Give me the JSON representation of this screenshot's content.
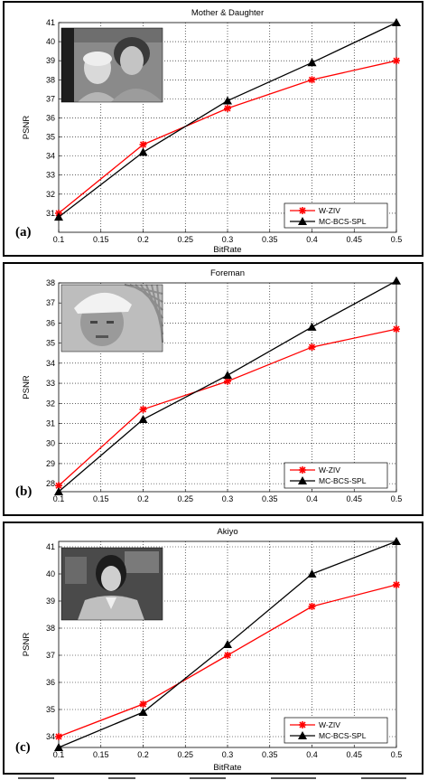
{
  "chart_data": [
    {
      "type": "line",
      "panel_label": "(a)",
      "title": "Mother & Daughter",
      "xlabel": "BitRate",
      "ylabel": "PSNR",
      "x": [
        0.1,
        0.2,
        0.3,
        0.4,
        0.5
      ],
      "xlim": [
        0.1,
        0.5
      ],
      "ylim": [
        30,
        41
      ],
      "xticks": [
        "0.1",
        "0.15",
        "0.2",
        "0.25",
        "0.3",
        "0.35",
        "0.4",
        "0.45",
        "0.5"
      ],
      "yticks": [
        "31",
        "32",
        "33",
        "34",
        "35",
        "36",
        "37",
        "38",
        "39",
        "40",
        "41"
      ],
      "grid": true,
      "legend_position": "bottom-right",
      "thumbnail": "mother-daughter-photo",
      "series": [
        {
          "name": "W-ZIV",
          "color": "#ff0000",
          "marker": "asterisk",
          "values": [
            31.0,
            34.6,
            36.5,
            38.0,
            39.0
          ]
        },
        {
          "name": "MC-BCS-SPL",
          "color": "#000000",
          "marker": "triangle",
          "values": [
            30.8,
            34.2,
            36.9,
            38.9,
            41.0
          ]
        }
      ]
    },
    {
      "type": "line",
      "panel_label": "(b)",
      "title": "Foreman",
      "xlabel": "",
      "ylabel": "PSNR",
      "x": [
        0.1,
        0.2,
        0.3,
        0.4,
        0.5
      ],
      "xlim": [
        0.1,
        0.5
      ],
      "ylim": [
        27.6,
        38
      ],
      "xticks": [
        "0.1",
        "0.15",
        "0.2",
        "0.25",
        "0.3",
        "0.35",
        "0.4",
        "0.45",
        "0.5"
      ],
      "yticks": [
        "28",
        "29",
        "30",
        "31",
        "32",
        "33",
        "34",
        "35",
        "36",
        "37",
        "38"
      ],
      "grid": true,
      "legend_position": "bottom-right",
      "thumbnail": "foreman-photo",
      "series": [
        {
          "name": "W-ZIV",
          "color": "#ff0000",
          "marker": "asterisk",
          "values": [
            27.9,
            31.7,
            33.1,
            34.8,
            35.7
          ]
        },
        {
          "name": "MC-BCS-SPL",
          "color": "#000000",
          "marker": "triangle",
          "values": [
            27.6,
            31.2,
            33.4,
            35.8,
            38.1
          ]
        }
      ]
    },
    {
      "type": "line",
      "panel_label": "(c)",
      "title": "Akiyo",
      "xlabel": "BitRate",
      "ylabel": "PSNR",
      "x": [
        0.1,
        0.2,
        0.3,
        0.4,
        0.5
      ],
      "xlim": [
        0.1,
        0.5
      ],
      "ylim": [
        33.6,
        41.2
      ],
      "xticks": [
        "0.1",
        "0.15",
        "0.2",
        "0.25",
        "0.3",
        "0.35",
        "0.4",
        "0.45",
        "0.5"
      ],
      "yticks": [
        "34",
        "35",
        "36",
        "37",
        "38",
        "39",
        "40",
        "41"
      ],
      "grid": true,
      "legend_position": "bottom-right",
      "thumbnail": "akiyo-newsreader-photo",
      "series": [
        {
          "name": "W-ZIV",
          "color": "#ff0000",
          "marker": "asterisk",
          "values": [
            34.0,
            35.2,
            37.0,
            38.8,
            39.6
          ]
        },
        {
          "name": "MC-BCS-SPL",
          "color": "#000000",
          "marker": "triangle",
          "values": [
            33.6,
            34.9,
            37.4,
            40.0,
            41.2
          ]
        }
      ]
    }
  ]
}
